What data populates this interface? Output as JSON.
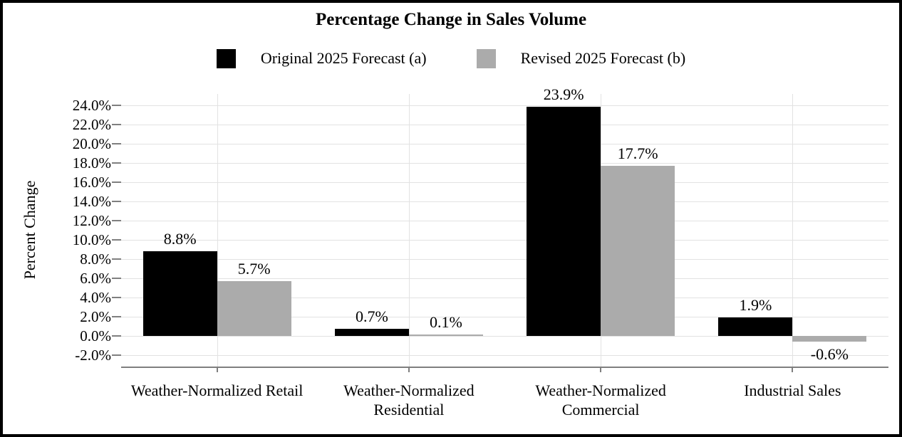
{
  "chart_data": {
    "type": "bar",
    "title": "Percentage Change in Sales Volume",
    "ylabel": "Percent Change",
    "xlabel": "",
    "grid": true,
    "legend_position": "top",
    "ylim": [
      -3.2,
      25.2
    ],
    "categories": [
      "Weather-Normalized Retail",
      "Weather-Normalized Residential",
      "Weather-Normalized Commercial",
      "Industrial Sales"
    ],
    "series": [
      {
        "name": "Original 2025 Forecast (a)",
        "color": "#000000",
        "values": [
          8.8,
          0.7,
          23.9,
          1.9
        ],
        "labels": [
          "8.8%",
          "0.7%",
          "23.9%",
          "1.9%"
        ]
      },
      {
        "name": "Revised 2025 Forecast (b)",
        "color": "#ababab",
        "values": [
          5.7,
          0.1,
          17.7,
          -0.6
        ],
        "labels": [
          "5.7%",
          "0.1%",
          "17.7%",
          "-0.6%"
        ]
      }
    ],
    "y_ticks": [
      {
        "value": 24.0,
        "label": "24.0%"
      },
      {
        "value": 22.0,
        "label": "22.0%"
      },
      {
        "value": 20.0,
        "label": "20.0%"
      },
      {
        "value": 18.0,
        "label": "18.0%"
      },
      {
        "value": 16.0,
        "label": "16.0%"
      },
      {
        "value": 14.0,
        "label": "14.0%"
      },
      {
        "value": 12.0,
        "label": "12.0%"
      },
      {
        "value": 10.0,
        "label": "10.0%"
      },
      {
        "value": 8.0,
        "label": "8.0%"
      },
      {
        "value": 6.0,
        "label": "6.0%"
      },
      {
        "value": 4.0,
        "label": "4.0%"
      },
      {
        "value": 2.0,
        "label": "2.0%"
      },
      {
        "value": 0.0,
        "label": "0.0%"
      },
      {
        "value": -2.0,
        "label": "-2.0%"
      }
    ]
  }
}
